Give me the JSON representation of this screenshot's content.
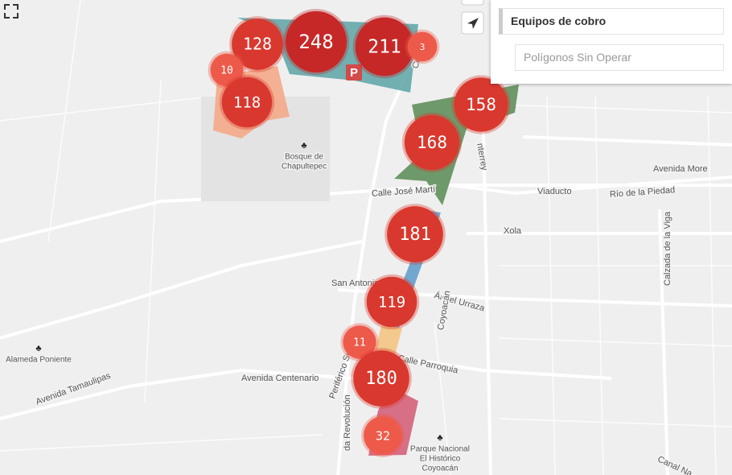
{
  "panel": {
    "items": [
      "Equipos de cobro",
      "Polígonos Sin Operar"
    ]
  },
  "parking_icon": "P",
  "clusters": [
    {
      "count": 128
    },
    {
      "count": 248
    },
    {
      "count": 211
    },
    {
      "count": 3
    },
    {
      "count": 10
    },
    {
      "count": 118
    },
    {
      "count": 158
    },
    {
      "count": 168
    },
    {
      "count": 181
    },
    {
      "count": 119
    },
    {
      "count": 11
    },
    {
      "count": 180
    },
    {
      "count": 32
    }
  ],
  "places": [
    {
      "lines": [
        "Bosque de",
        "Chapultepec"
      ]
    },
    {
      "lines": [
        "Alameda Poniente"
      ]
    },
    {
      "lines": [
        "Parque Nacional",
        "El Histórico",
        "Coyoacán"
      ]
    }
  ],
  "streets": [
    "Calle José Martí",
    "Viaducto",
    "Río de la Piedad",
    "Avenida More",
    "Xola",
    "San Antonio",
    "Ángel Urraza",
    "Calzada de la Viga",
    "Coyoacán",
    "Calle Parroquia",
    "Avenida Centenario",
    "Periférico Sur",
    "Avenida Tamaulipas",
    "da Revolución",
    "nterrey",
    "Canal Na",
    "Circuito"
  ]
}
